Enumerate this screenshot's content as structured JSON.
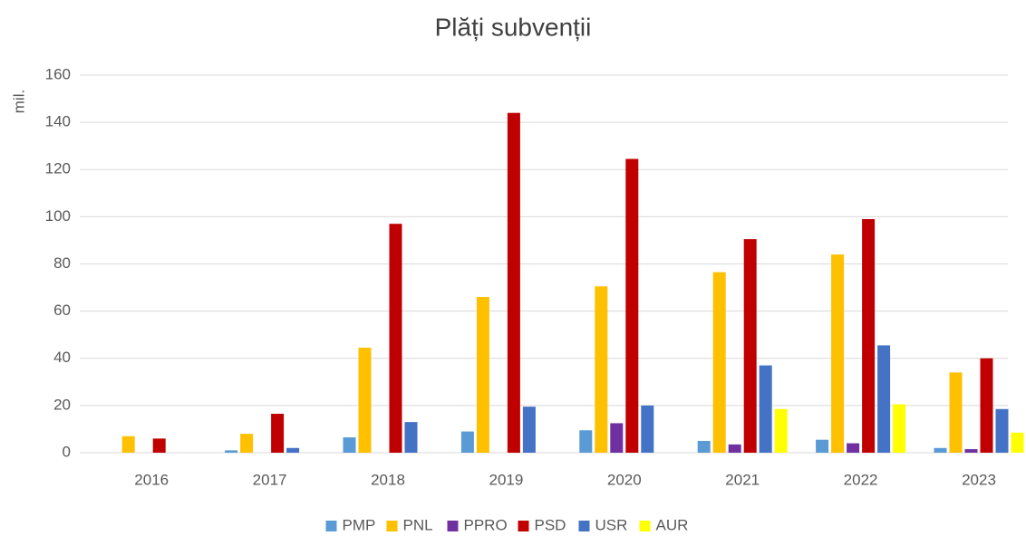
{
  "chart_data": {
    "type": "bar",
    "title": "Plăți subvenții",
    "y_label": "mil.",
    "categories": [
      "2016",
      "2017",
      "2018",
      "2019",
      "2020",
      "2021",
      "2022",
      "2023"
    ],
    "series": [
      {
        "name": "PMP",
        "color": "#5b9bd5",
        "values": [
          0,
          1,
          6.5,
          9,
          9.5,
          5,
          5.5,
          2
        ]
      },
      {
        "name": "PNL",
        "color": "#ffc000",
        "values": [
          7,
          8,
          44.5,
          66,
          70.5,
          76.5,
          84,
          34
        ]
      },
      {
        "name": "PPRO",
        "color": "#7030a0",
        "values": [
          0,
          0,
          0,
          0,
          12.5,
          3.5,
          4,
          1.5
        ]
      },
      {
        "name": "PSD",
        "color": "#c00000",
        "values": [
          6,
          16.5,
          97,
          144,
          124.5,
          90.5,
          99,
          40
        ]
      },
      {
        "name": "USR",
        "color": "#4472c4",
        "values": [
          0,
          2,
          13,
          19.5,
          20,
          37,
          45.5,
          18.5
        ]
      },
      {
        "name": "AUR",
        "color": "#ffff00",
        "values": [
          0,
          0,
          0,
          0,
          0,
          18.5,
          20.5,
          8.5
        ]
      }
    ],
    "ylim": [
      0,
      160
    ],
    "yticks": [
      0,
      20,
      40,
      60,
      80,
      100,
      120,
      140,
      160
    ],
    "grid": true,
    "legend": "bottom"
  }
}
